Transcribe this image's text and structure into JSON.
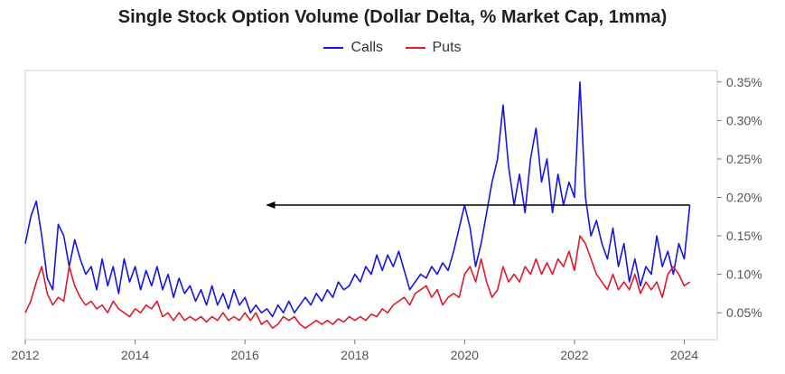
{
  "chart_data": {
    "type": "line",
    "title": "Single Stock Option Volume (Dollar Delta, % Market Cap, 1mma)",
    "xlabel": "",
    "ylabel": "",
    "xlim": [
      2012.0,
      2024.6
    ],
    "ylim": [
      0.015,
      0.365
    ],
    "x_ticks": [
      2012,
      2014,
      2016,
      2018,
      2020,
      2022,
      2024
    ],
    "x_tick_labels": [
      "2012",
      "2014",
      "2016",
      "2018",
      "2020",
      "2022",
      "2024"
    ],
    "y_ticks": [
      0.05,
      0.1,
      0.15,
      0.2,
      0.25,
      0.3,
      0.35
    ],
    "y_tick_labels": [
      "0.05%",
      "0.10%",
      "0.15%",
      "0.20%",
      "0.25%",
      "0.30%",
      "0.35%"
    ],
    "y_axis_side": "right",
    "legend_position": "top-center",
    "series": [
      {
        "name": "Calls",
        "color": "#1515e6",
        "x": [
          2012.0,
          2012.1,
          2012.2,
          2012.3,
          2012.4,
          2012.5,
          2012.6,
          2012.7,
          2012.8,
          2012.9,
          2013.0,
          2013.1,
          2013.2,
          2013.3,
          2013.4,
          2013.5,
          2013.6,
          2013.7,
          2013.8,
          2013.9,
          2014.0,
          2014.1,
          2014.2,
          2014.3,
          2014.4,
          2014.5,
          2014.6,
          2014.7,
          2014.8,
          2014.9,
          2015.0,
          2015.1,
          2015.2,
          2015.3,
          2015.4,
          2015.5,
          2015.6,
          2015.7,
          2015.8,
          2015.9,
          2016.0,
          2016.1,
          2016.2,
          2016.3,
          2016.4,
          2016.5,
          2016.6,
          2016.7,
          2016.8,
          2016.9,
          2017.0,
          2017.1,
          2017.2,
          2017.3,
          2017.4,
          2017.5,
          2017.6,
          2017.7,
          2017.8,
          2017.9,
          2018.0,
          2018.1,
          2018.2,
          2018.3,
          2018.4,
          2018.5,
          2018.6,
          2018.7,
          2018.8,
          2018.9,
          2019.0,
          2019.1,
          2019.2,
          2019.3,
          2019.4,
          2019.5,
          2019.6,
          2019.7,
          2019.8,
          2019.9,
          2020.0,
          2020.1,
          2020.2,
          2020.3,
          2020.4,
          2020.5,
          2020.6,
          2020.7,
          2020.8,
          2020.9,
          2021.0,
          2021.1,
          2021.2,
          2021.3,
          2021.4,
          2021.5,
          2021.6,
          2021.7,
          2021.8,
          2021.9,
          2022.0,
          2022.1,
          2022.2,
          2022.3,
          2022.4,
          2022.5,
          2022.6,
          2022.7,
          2022.8,
          2022.9,
          2023.0,
          2023.1,
          2023.2,
          2023.3,
          2023.4,
          2023.5,
          2023.6,
          2023.7,
          2023.8,
          2023.9,
          2024.0,
          2024.1
        ],
        "values": [
          0.14,
          0.175,
          0.195,
          0.15,
          0.095,
          0.08,
          0.165,
          0.15,
          0.11,
          0.145,
          0.12,
          0.1,
          0.11,
          0.08,
          0.12,
          0.085,
          0.11,
          0.075,
          0.12,
          0.09,
          0.11,
          0.08,
          0.105,
          0.085,
          0.11,
          0.08,
          0.1,
          0.07,
          0.095,
          0.075,
          0.085,
          0.065,
          0.08,
          0.06,
          0.085,
          0.06,
          0.075,
          0.055,
          0.08,
          0.06,
          0.07,
          0.05,
          0.06,
          0.05,
          0.055,
          0.045,
          0.06,
          0.05,
          0.065,
          0.05,
          0.06,
          0.07,
          0.06,
          0.075,
          0.065,
          0.08,
          0.07,
          0.09,
          0.08,
          0.085,
          0.1,
          0.09,
          0.11,
          0.1,
          0.125,
          0.105,
          0.125,
          0.11,
          0.13,
          0.105,
          0.08,
          0.09,
          0.1,
          0.095,
          0.11,
          0.1,
          0.115,
          0.105,
          0.13,
          0.16,
          0.19,
          0.16,
          0.11,
          0.14,
          0.18,
          0.22,
          0.25,
          0.32,
          0.24,
          0.19,
          0.23,
          0.18,
          0.25,
          0.29,
          0.22,
          0.25,
          0.18,
          0.23,
          0.19,
          0.22,
          0.2,
          0.35,
          0.2,
          0.15,
          0.17,
          0.14,
          0.12,
          0.16,
          0.11,
          0.14,
          0.09,
          0.12,
          0.085,
          0.11,
          0.1,
          0.15,
          0.11,
          0.13,
          0.1,
          0.14,
          0.12,
          0.19
        ]
      },
      {
        "name": "Puts",
        "color": "#e01a2b",
        "x": [
          2012.0,
          2012.1,
          2012.2,
          2012.3,
          2012.4,
          2012.5,
          2012.6,
          2012.7,
          2012.8,
          2012.9,
          2013.0,
          2013.1,
          2013.2,
          2013.3,
          2013.4,
          2013.5,
          2013.6,
          2013.7,
          2013.8,
          2013.9,
          2014.0,
          2014.1,
          2014.2,
          2014.3,
          2014.4,
          2014.5,
          2014.6,
          2014.7,
          2014.8,
          2014.9,
          2015.0,
          2015.1,
          2015.2,
          2015.3,
          2015.4,
          2015.5,
          2015.6,
          2015.7,
          2015.8,
          2015.9,
          2016.0,
          2016.1,
          2016.2,
          2016.3,
          2016.4,
          2016.5,
          2016.6,
          2016.7,
          2016.8,
          2016.9,
          2017.0,
          2017.1,
          2017.2,
          2017.3,
          2017.4,
          2017.5,
          2017.6,
          2017.7,
          2017.8,
          2017.9,
          2018.0,
          2018.1,
          2018.2,
          2018.3,
          2018.4,
          2018.5,
          2018.6,
          2018.7,
          2018.8,
          2018.9,
          2019.0,
          2019.1,
          2019.2,
          2019.3,
          2019.4,
          2019.5,
          2019.6,
          2019.7,
          2019.8,
          2019.9,
          2020.0,
          2020.1,
          2020.2,
          2020.3,
          2020.4,
          2020.5,
          2020.6,
          2020.7,
          2020.8,
          2020.9,
          2021.0,
          2021.1,
          2021.2,
          2021.3,
          2021.4,
          2021.5,
          2021.6,
          2021.7,
          2021.8,
          2021.9,
          2022.0,
          2022.1,
          2022.2,
          2022.3,
          2022.4,
          2022.5,
          2022.6,
          2022.7,
          2022.8,
          2022.9,
          2023.0,
          2023.1,
          2023.2,
          2023.3,
          2023.4,
          2023.5,
          2023.6,
          2023.7,
          2023.8,
          2023.9,
          2024.0,
          2024.1
        ],
        "values": [
          0.05,
          0.065,
          0.09,
          0.11,
          0.075,
          0.06,
          0.07,
          0.065,
          0.11,
          0.085,
          0.07,
          0.06,
          0.065,
          0.055,
          0.06,
          0.05,
          0.065,
          0.055,
          0.05,
          0.045,
          0.055,
          0.05,
          0.06,
          0.055,
          0.065,
          0.045,
          0.05,
          0.04,
          0.05,
          0.04,
          0.045,
          0.04,
          0.045,
          0.038,
          0.045,
          0.04,
          0.05,
          0.04,
          0.045,
          0.04,
          0.05,
          0.04,
          0.05,
          0.035,
          0.04,
          0.03,
          0.035,
          0.045,
          0.04,
          0.045,
          0.035,
          0.03,
          0.035,
          0.04,
          0.035,
          0.04,
          0.035,
          0.042,
          0.038,
          0.045,
          0.04,
          0.045,
          0.04,
          0.048,
          0.045,
          0.055,
          0.05,
          0.06,
          0.065,
          0.07,
          0.06,
          0.075,
          0.08,
          0.085,
          0.07,
          0.08,
          0.06,
          0.07,
          0.075,
          0.07,
          0.1,
          0.11,
          0.09,
          0.12,
          0.09,
          0.07,
          0.08,
          0.11,
          0.09,
          0.1,
          0.09,
          0.11,
          0.1,
          0.12,
          0.1,
          0.115,
          0.1,
          0.12,
          0.11,
          0.13,
          0.105,
          0.15,
          0.14,
          0.12,
          0.1,
          0.09,
          0.08,
          0.1,
          0.08,
          0.09,
          0.08,
          0.1,
          0.075,
          0.09,
          0.08,
          0.09,
          0.07,
          0.1,
          0.11,
          0.1,
          0.085,
          0.09
        ]
      }
    ],
    "annotations": [
      {
        "type": "arrow",
        "from_x": 2024.1,
        "from_y": 0.19,
        "to_x": 2016.4,
        "to_y": 0.19,
        "color": "#000000"
      }
    ]
  }
}
